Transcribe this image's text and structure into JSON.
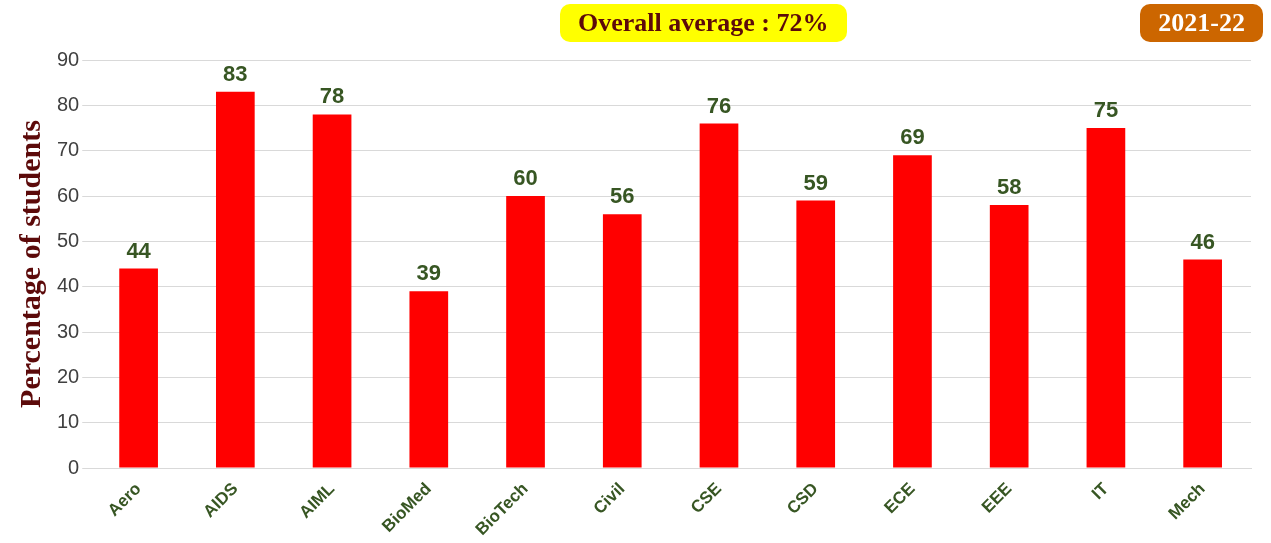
{
  "chart_data": {
    "type": "bar",
    "ylabel": "Percentage of students",
    "categories": [
      "Aero",
      "AIDS",
      "AIML",
      "BioMed",
      "BioTech",
      "Civil",
      "CSE",
      "CSD",
      "ECE",
      "EEE",
      "IT",
      "Mech"
    ],
    "values": [
      44,
      83,
      78,
      39,
      60,
      56,
      76,
      59,
      69,
      58,
      75,
      46
    ],
    "color": "#ff0000",
    "ylim": [
      0,
      90
    ],
    "yticks": [
      0,
      10,
      20,
      30,
      40,
      50,
      60,
      70,
      80,
      90
    ],
    "grid": "y",
    "data_labels": true,
    "legend": false,
    "annotations": [
      "Overall average : 72%",
      "2021-22"
    ]
  }
}
